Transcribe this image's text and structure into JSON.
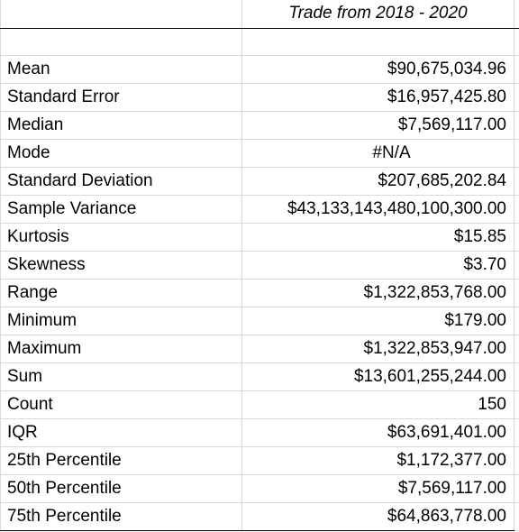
{
  "table": {
    "header": "Trade from 2018 - 2020",
    "rows": [
      {
        "label": "Mean",
        "value": "$90,675,034.96"
      },
      {
        "label": "Standard Error",
        "value": "$16,957,425.80"
      },
      {
        "label": "Median",
        "value": "$7,569,117.00"
      },
      {
        "label": "Mode",
        "value": "#N/A"
      },
      {
        "label": "Standard Deviation",
        "value": "$207,685,202.84"
      },
      {
        "label": "Sample Variance",
        "value": "$43,133,143,480,100,300.00"
      },
      {
        "label": "Kurtosis",
        "value": "$15.85"
      },
      {
        "label": "Skewness",
        "value": "$3.70"
      },
      {
        "label": "Range",
        "value": "$1,322,853,768.00"
      },
      {
        "label": "Minimum",
        "value": "$179.00"
      },
      {
        "label": "Maximum",
        "value": "$1,322,853,947.00"
      },
      {
        "label": "Sum",
        "value": "$13,601,255,244.00"
      },
      {
        "label": "Count",
        "value": "150"
      },
      {
        "label": "IQR",
        "value": "$63,691,401.00"
      },
      {
        "label": "25th Percentile",
        "value": "$1,172,377.00"
      },
      {
        "label": "50th Percentile",
        "value": "$7,569,117.00"
      },
      {
        "label": "75th Percentile",
        "value": "$64,863,778.00"
      }
    ]
  },
  "colors": {
    "gridline": "#dadada",
    "border": "#000000",
    "text": "#000000",
    "background": "#ffffff"
  }
}
